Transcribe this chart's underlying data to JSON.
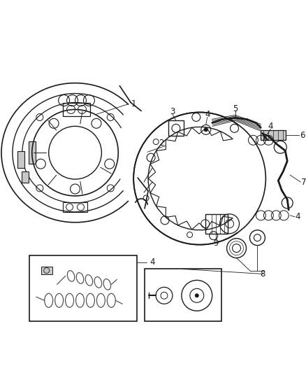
{
  "bg_color": "#ffffff",
  "line_color": "#1a1a1a",
  "fig_width": 4.38,
  "fig_height": 5.33,
  "dpi": 100,
  "gray_fill": "#c8c8c8",
  "mid_gray": "#999999",
  "dark_gray": "#555555"
}
